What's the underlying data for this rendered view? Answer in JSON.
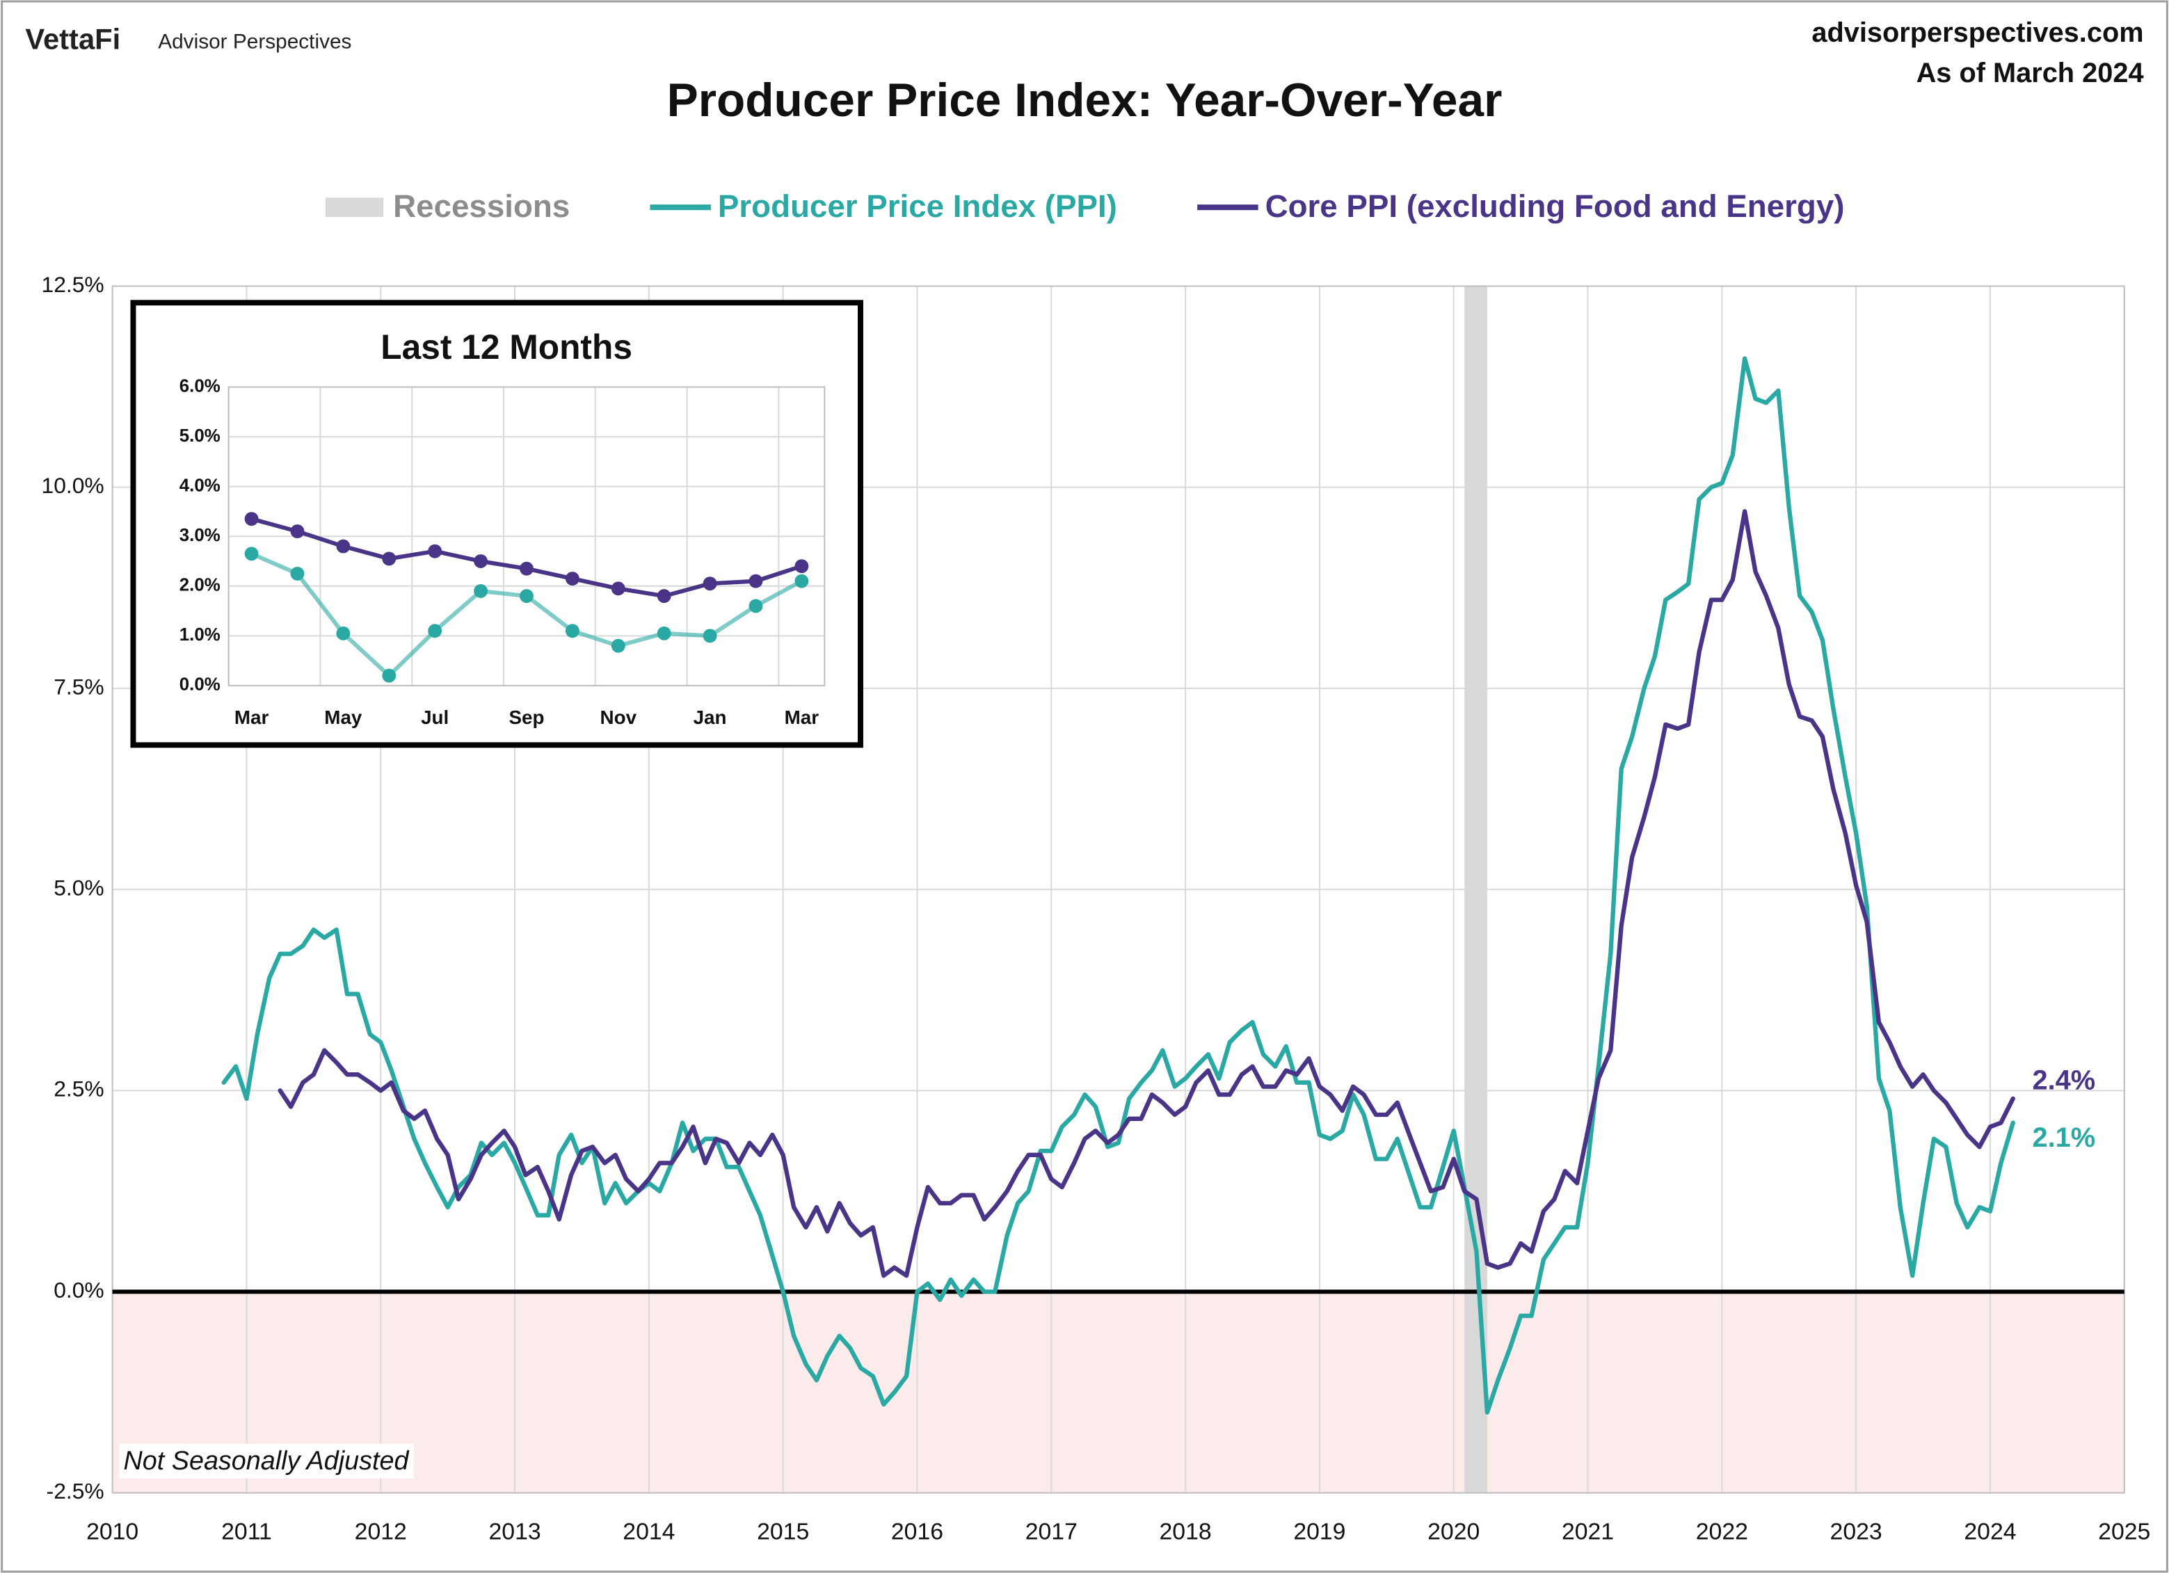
{
  "header": {
    "brand": "VettaFi",
    "product": "Advisor Perspectives",
    "site": "advisorperspectives.com",
    "as_of": "As of March 2024"
  },
  "chart_data": [
    {
      "type": "line",
      "title": "Producer Price Index: Year-Over-Year",
      "note": "Not Seasonally Adjusted",
      "xlim": [
        2010,
        2025
      ],
      "xticks": [
        2010,
        2011,
        2012,
        2013,
        2014,
        2015,
        2016,
        2017,
        2018,
        2019,
        2020,
        2021,
        2022,
        2023,
        2024,
        2025
      ],
      "ylim": [
        -2.5,
        12.5
      ],
      "yticks": [
        {
          "value": -2.5,
          "label": "-2.5%"
        },
        {
          "value": 0,
          "label": "0.0%"
        },
        {
          "value": 2.5,
          "label": "2.5%"
        },
        {
          "value": 5,
          "label": "5.0%"
        },
        {
          "value": 7.5,
          "label": "7.5%"
        },
        {
          "value": 10,
          "label": "10.0%"
        },
        {
          "value": 12.5,
          "label": "12.5%"
        }
      ],
      "grid": true,
      "zero_line": true,
      "negative_shade": "#fcebeb",
      "legend": "top",
      "recessions": {
        "name": "Recessions",
        "color": "#d9d9d9",
        "spans": [
          [
            2020.08,
            2020.25
          ]
        ]
      },
      "x": [
        2010.83,
        2010.92,
        2011,
        2011.08,
        2011.17,
        2011.25,
        2011.33,
        2011.42,
        2011.5,
        2011.58,
        2011.67,
        2011.75,
        2011.83,
        2011.92,
        2012,
        2012.08,
        2012.17,
        2012.25,
        2012.33,
        2012.42,
        2012.5,
        2012.58,
        2012.67,
        2012.75,
        2012.83,
        2012.92,
        2013,
        2013.08,
        2013.17,
        2013.25,
        2013.33,
        2013.42,
        2013.5,
        2013.58,
        2013.67,
        2013.75,
        2013.83,
        2013.92,
        2014,
        2014.08,
        2014.17,
        2014.25,
        2014.33,
        2014.42,
        2014.5,
        2014.58,
        2014.67,
        2014.75,
        2014.83,
        2014.92,
        2015,
        2015.08,
        2015.17,
        2015.25,
        2015.33,
        2015.42,
        2015.5,
        2015.58,
        2015.67,
        2015.75,
        2015.83,
        2015.92,
        2016,
        2016.08,
        2016.17,
        2016.25,
        2016.33,
        2016.42,
        2016.5,
        2016.58,
        2016.67,
        2016.75,
        2016.83,
        2016.92,
        2017,
        2017.08,
        2017.17,
        2017.25,
        2017.33,
        2017.42,
        2017.5,
        2017.58,
        2017.67,
        2017.75,
        2017.83,
        2017.92,
        2018,
        2018.08,
        2018.17,
        2018.25,
        2018.33,
        2018.42,
        2018.5,
        2018.58,
        2018.67,
        2018.75,
        2018.83,
        2018.92,
        2019,
        2019.08,
        2019.17,
        2019.25,
        2019.33,
        2019.42,
        2019.5,
        2019.58,
        2019.67,
        2019.75,
        2019.83,
        2019.92,
        2020,
        2020.08,
        2020.17,
        2020.25,
        2020.33,
        2020.42,
        2020.5,
        2020.58,
        2020.67,
        2020.75,
        2020.83,
        2020.92,
        2021,
        2021.08,
        2021.17,
        2021.25,
        2021.33,
        2021.42,
        2021.5,
        2021.58,
        2021.67,
        2021.75,
        2021.83,
        2021.92,
        2022,
        2022.08,
        2022.17,
        2022.25,
        2022.33,
        2022.42,
        2022.5,
        2022.58,
        2022.67,
        2022.75,
        2022.83,
        2022.92,
        2023,
        2023.08,
        2023.17,
        2023.25,
        2023.33,
        2023.42,
        2023.5,
        2023.58,
        2023.67,
        2023.75,
        2023.83,
        2023.92,
        2024,
        2024.08,
        2024.17
      ],
      "series": [
        {
          "name": "Producer Price Index (PPI)",
          "color": "#2aa8a3",
          "end_label": "2.1%",
          "values": [
            2.6,
            2.8,
            2.4,
            3.2,
            3.9,
            4.2,
            4.2,
            4.3,
            4.5,
            4.4,
            4.5,
            3.7,
            3.7,
            3.2,
            3.1,
            2.75,
            2.3,
            1.9,
            1.6,
            1.3,
            1.05,
            1.3,
            1.45,
            1.85,
            1.7,
            1.85,
            1.6,
            1.3,
            0.95,
            0.95,
            1.7,
            1.95,
            1.6,
            1.8,
            1.1,
            1.35,
            1.1,
            1.25,
            1.35,
            1.25,
            1.6,
            2.1,
            1.75,
            1.9,
            1.9,
            1.55,
            1.55,
            1.25,
            0.95,
            0.45,
            0,
            -0.55,
            -0.9,
            -1.1,
            -0.8,
            -0.55,
            -0.7,
            -0.95,
            -1.05,
            -1.4,
            -1.25,
            -1.05,
            0,
            0.1,
            -0.1,
            0.15,
            -0.05,
            0.15,
            0,
            0,
            0.7,
            1.1,
            1.25,
            1.75,
            1.75,
            2.05,
            2.2,
            2.45,
            2.3,
            1.8,
            1.85,
            2.4,
            2.6,
            2.75,
            3.0,
            2.55,
            2.65,
            2.8,
            2.95,
            2.65,
            3.1,
            3.25,
            3.35,
            2.95,
            2.8,
            3.05,
            2.6,
            2.6,
            1.95,
            1.9,
            2.0,
            2.45,
            2.2,
            1.65,
            1.65,
            1.9,
            1.45,
            1.05,
            1.05,
            1.55,
            2.0,
            1.3,
            0.5,
            -1.5,
            -1.1,
            -0.7,
            -0.3,
            -0.3,
            0.4,
            0.6,
            0.8,
            0.8,
            1.6,
            2.8,
            4.2,
            6.5,
            6.9,
            7.5,
            7.9,
            8.6,
            8.7,
            8.8,
            9.85,
            10.0,
            10.05,
            10.4,
            11.6,
            11.1,
            11.05,
            11.2,
            9.75,
            8.65,
            8.45,
            8.1,
            7.25,
            6.4,
            5.7,
            4.8,
            2.65,
            2.25,
            1.05,
            0.2,
            1.1,
            1.9,
            1.8,
            1.1,
            0.8,
            1.05,
            1.0,
            1.6,
            2.1
          ]
        },
        {
          "name": "Core PPI (excluding Food and Energy)",
          "color": "#4a3487",
          "end_label": "2.4%",
          "values": [
            null,
            null,
            null,
            null,
            null,
            2.5,
            2.3,
            2.6,
            2.7,
            3.0,
            2.85,
            2.7,
            2.7,
            2.6,
            2.5,
            2.6,
            2.25,
            2.15,
            2.25,
            1.9,
            1.7,
            1.15,
            1.4,
            1.7,
            1.85,
            2.0,
            1.8,
            1.45,
            1.55,
            1.25,
            0.9,
            1.45,
            1.75,
            1.8,
            1.6,
            1.7,
            1.4,
            1.25,
            1.4,
            1.6,
            1.6,
            1.8,
            2.05,
            1.6,
            1.9,
            1.85,
            1.6,
            1.85,
            1.7,
            1.95,
            1.7,
            1.05,
            0.8,
            1.05,
            0.75,
            1.1,
            0.85,
            0.7,
            0.8,
            0.2,
            0.3,
            0.2,
            0.8,
            1.3,
            1.1,
            1.1,
            1.2,
            1.2,
            0.9,
            1.05,
            1.25,
            1.5,
            1.7,
            1.7,
            1.4,
            1.3,
            1.6,
            1.9,
            2.0,
            1.85,
            1.95,
            2.15,
            2.15,
            2.45,
            2.35,
            2.2,
            2.3,
            2.6,
            2.75,
            2.45,
            2.45,
            2.7,
            2.8,
            2.55,
            2.55,
            2.75,
            2.7,
            2.9,
            2.55,
            2.45,
            2.25,
            2.55,
            2.45,
            2.2,
            2.2,
            2.35,
            1.95,
            1.6,
            1.25,
            1.3,
            1.65,
            1.25,
            1.15,
            0.35,
            0.3,
            0.35,
            0.6,
            0.5,
            1.0,
            1.15,
            1.5,
            1.35,
            2.0,
            2.65,
            3.0,
            4.55,
            5.4,
            5.9,
            6.4,
            7.05,
            7.0,
            7.05,
            7.95,
            8.6,
            8.6,
            8.85,
            9.7,
            8.95,
            8.65,
            8.25,
            7.55,
            7.15,
            7.1,
            6.9,
            6.25,
            5.7,
            5.05,
            4.6,
            3.35,
            3.1,
            2.8,
            2.55,
            2.7,
            2.5,
            2.35,
            2.15,
            1.95,
            1.8,
            2.05,
            2.1,
            2.4
          ]
        }
      ]
    },
    {
      "type": "line",
      "title": "Last 12 Months",
      "markers": true,
      "grid": true,
      "categories": [
        "Mar",
        null,
        "May",
        null,
        "Jul",
        null,
        "Sep",
        null,
        "Nov",
        null,
        "Jan",
        null,
        "Mar"
      ],
      "ylim": [
        0,
        6
      ],
      "yticks": [
        {
          "value": 0,
          "label": "0.0%"
        },
        {
          "value": 1,
          "label": "1.0%"
        },
        {
          "value": 2,
          "label": "2.0%"
        },
        {
          "value": 3,
          "label": "3.0%"
        },
        {
          "value": 4,
          "label": "4.0%"
        },
        {
          "value": 5,
          "label": "5.0%"
        },
        {
          "value": 6,
          "label": "6.0%"
        }
      ],
      "series": [
        {
          "color": "#2aa8a3",
          "values": [
            2.65,
            2.25,
            1.05,
            0.2,
            1.1,
            1.9,
            1.8,
            1.1,
            0.8,
            1.05,
            1.0,
            1.6,
            2.1
          ]
        },
        {
          "color": "#4a3487",
          "values": [
            3.35,
            3.1,
            2.8,
            2.55,
            2.7,
            2.5,
            2.35,
            2.15,
            1.95,
            1.8,
            2.05,
            2.1,
            2.4
          ]
        }
      ]
    }
  ]
}
